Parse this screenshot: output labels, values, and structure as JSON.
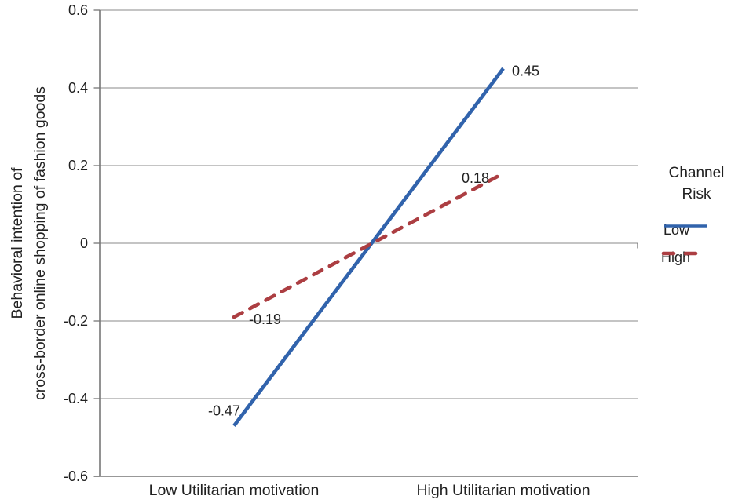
{
  "chart_data": {
    "type": "line",
    "title": "",
    "categories": [
      "Low Utilitarian motivation",
      "High Utilitarian motivation"
    ],
    "series": [
      {
        "name": "Low",
        "style": "solid",
        "color": "#3163AC",
        "values": [
          -0.47,
          0.45
        ],
        "point_labels": [
          "-0.47",
          "0.45"
        ]
      },
      {
        "name": "High",
        "style": "dashed",
        "color": "#AC3E42",
        "values": [
          -0.19,
          0.18
        ],
        "point_labels": [
          "-0.19",
          "0.18"
        ]
      }
    ],
    "ylabel_lines": [
      "Behavioral intention of",
      "cross-border online shopping of fashion goods"
    ],
    "xlabel": "",
    "ylim": [
      -0.6,
      0.6
    ],
    "yticks": {
      "values": [
        0.6,
        0.4,
        0.2,
        0,
        -0.2,
        -0.4,
        -0.6
      ],
      "labels": [
        "0.6",
        "0.4",
        "0.2",
        "0",
        "-0.2",
        "-0.4",
        "-0.6"
      ]
    },
    "grid": true,
    "legend": {
      "position": "right",
      "title_lines": [
        "Channel",
        "Risk"
      ],
      "items": [
        {
          "label": "Low"
        },
        {
          "label": "High"
        }
      ]
    },
    "colors": {
      "gridline": "#A0A0A0",
      "axis": "#777777",
      "text": "#212121"
    }
  }
}
